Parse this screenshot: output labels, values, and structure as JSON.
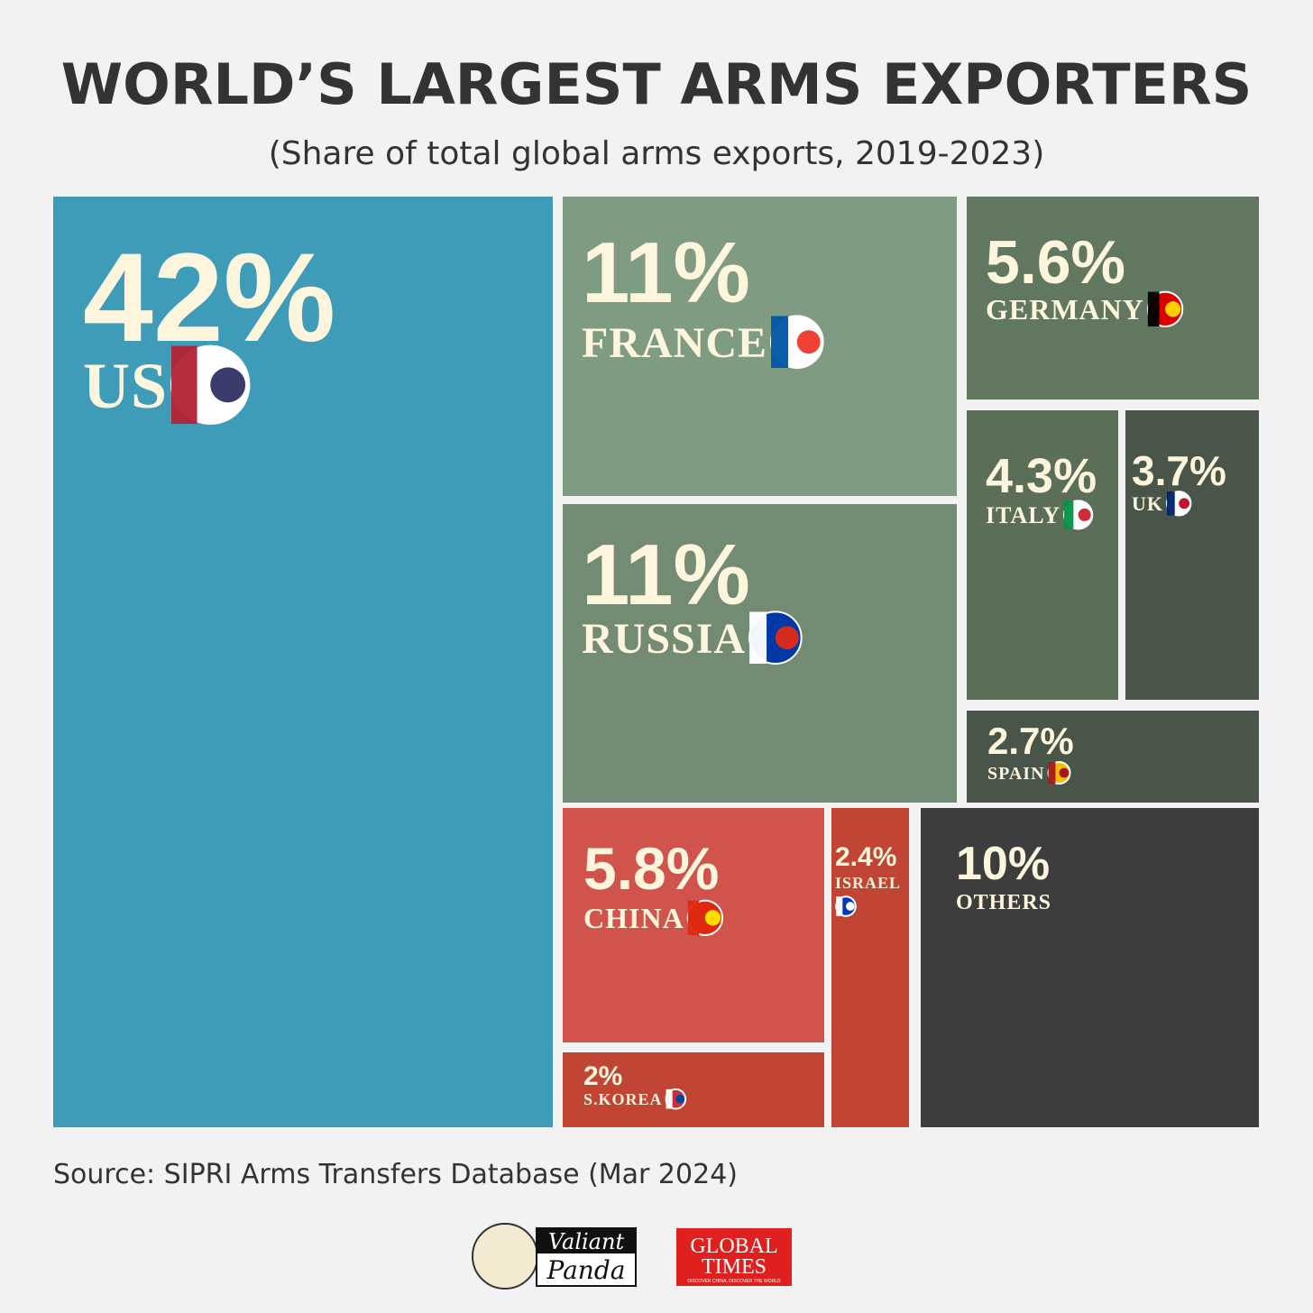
{
  "chart_data": {
    "type": "treemap",
    "title": "WORLD’S LARGEST ARMS EXPORTERS",
    "subtitle": "(Share of total global arms exports, 2019-2023)",
    "categories": [
      "US",
      "FRANCE",
      "RUSSIA",
      "GERMANY",
      "ITALY",
      "UK",
      "SPAIN",
      "CHINA",
      "S.KOREA",
      "ISRAEL",
      "OTHERS"
    ],
    "values": [
      42,
      11,
      11,
      5.6,
      4.3,
      3.7,
      2.7,
      5.8,
      2,
      2.4,
      10
    ],
    "value_labels": [
      "42%",
      "11%",
      "11%",
      "5.6%",
      "4.3%",
      "3.7%",
      "2.7%",
      "5.8%",
      "2%",
      "2.4%",
      "10%"
    ],
    "colors": [
      "#3f9cb8",
      "#7f9c82",
      "#738a73",
      "#62775f",
      "#5b6e58",
      "#4a5549",
      "#4a5549",
      "#d0544c",
      "#c04535",
      "#c04535",
      "#3d3d3d"
    ],
    "source": "Source: SIPRI Arms Transfers Database (Mar 2024)"
  },
  "logos": {
    "valiant_panda": [
      "Valiant",
      "Panda"
    ],
    "global_times": [
      "GLOBAL",
      "TIMES"
    ],
    "tagline": "DISCOVER CHINA, DISCOVER THE WORLD"
  }
}
